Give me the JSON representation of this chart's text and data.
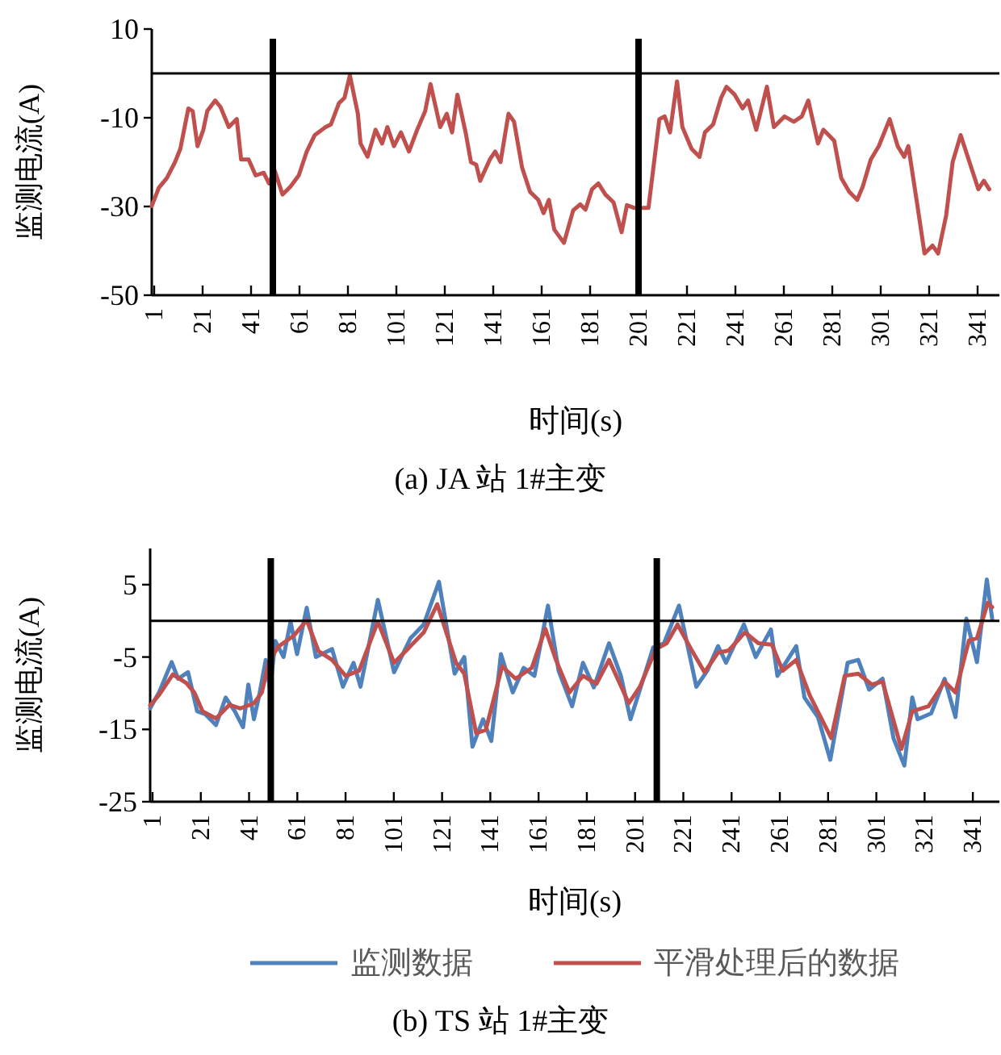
{
  "chart_data": [
    {
      "type": "line",
      "title": "(a) JA 站 1#主变",
      "xlabel": "时间(s)",
      "ylabel": "监测电流(A)",
      "xlim": [
        0,
        350
      ],
      "xticks": [
        1,
        21,
        41,
        61,
        81,
        101,
        121,
        141,
        161,
        181,
        201,
        221,
        241,
        261,
        281,
        301,
        321,
        341
      ],
      "ylim": [
        -50,
        10
      ],
      "yticks": [
        -50,
        -30,
        -10,
        10
      ],
      "ref_lines": [
        {
          "axis": "y",
          "value": 0
        },
        {
          "axis": "x",
          "value": 50
        },
        {
          "axis": "x",
          "value": 201
        }
      ],
      "series": [
        {
          "color": "#c0504d",
          "x": [
            0,
            2.9,
            6.2,
            9.6,
            11.8,
            15.1,
            16.9,
            18.9,
            21.3,
            22.9,
            26.2,
            28.4,
            31.8,
            35.1,
            36.9,
            40,
            42.9,
            46.2,
            48.4,
            50.7,
            54,
            57.3,
            60.7,
            64,
            67.3,
            71.8,
            74,
            77.3,
            79.6,
            81.8,
            85.1,
            86.2,
            89.1,
            92.4,
            95.1,
            97.3,
            100,
            102.9,
            106.2,
            109.6,
            112.9,
            115.1,
            119.1,
            121.8,
            124,
            126.2,
            129.6,
            131.8,
            134,
            135.6,
            139.6,
            141.8,
            144,
            147.3,
            149.6,
            152.9,
            156.2,
            159.6,
            161.8,
            164,
            166.2,
            170.2,
            174,
            176.9,
            179.1,
            181.8,
            184.4,
            187.3,
            190.7,
            194,
            196.2,
            199.1,
            205.1,
            209.6,
            211.8,
            214,
            216.9,
            219.1,
            222.9,
            226.2,
            228.4,
            231.8,
            235.1,
            237.3,
            240.7,
            244,
            246.2,
            249.6,
            254,
            256.9,
            261.3,
            265.1,
            268.4,
            271.1,
            275.1,
            277.3,
            281.8,
            284.7,
            288,
            291.3,
            293.6,
            296.9,
            300.2,
            304.7,
            308,
            310.7,
            312.4,
            315.8,
            319.1,
            322.4,
            324.7,
            328,
            330.7,
            334,
            337.3,
            341.3,
            343.6,
            345.8
          ],
          "values": [
            -29.9,
            -25.8,
            -23.6,
            -20,
            -17,
            -7.9,
            -8.5,
            -16.4,
            -12.7,
            -8.5,
            -6.1,
            -7.6,
            -12.1,
            -10.3,
            -19.4,
            -19.4,
            -23,
            -22.4,
            -24.8,
            -21.8,
            -27.3,
            -25.5,
            -23,
            -17.6,
            -13.9,
            -12.1,
            -11.5,
            -6.7,
            -5.5,
            -0.4,
            -9.1,
            -15.8,
            -18.8,
            -12.7,
            -15.8,
            -12.1,
            -16.4,
            -13.3,
            -17.6,
            -12.7,
            -8.5,
            -2.4,
            -12.1,
            -9.1,
            -13.3,
            -4.8,
            -13.3,
            -20,
            -20.6,
            -24.2,
            -19.4,
            -17.6,
            -20,
            -9.1,
            -10.9,
            -21.2,
            -26.7,
            -28.5,
            -31.5,
            -28.5,
            -35.2,
            -38.2,
            -30.9,
            -29.5,
            -30.7,
            -26.1,
            -24.8,
            -27.3,
            -29.1,
            -35.8,
            -29.7,
            -30.3,
            -30.3,
            -10.3,
            -9.7,
            -13.3,
            -1.8,
            -12.1,
            -17,
            -18.8,
            -13.3,
            -11.5,
            -5.5,
            -3,
            -4.8,
            -7.9,
            -6.1,
            -12.7,
            -3,
            -12.1,
            -9.7,
            -10.9,
            -9.7,
            -6.1,
            -15.8,
            -12.7,
            -15.2,
            -23.6,
            -26.7,
            -28.5,
            -25.5,
            -19.4,
            -16.4,
            -10.3,
            -16.4,
            -18.8,
            -16.4,
            -28.5,
            -40.6,
            -38.8,
            -40.6,
            -32.1,
            -20,
            -13.9,
            -19.4,
            -26.1,
            -24.2,
            -26.1
          ]
        }
      ]
    },
    {
      "type": "line",
      "title": "(b) TS 站 1#主变",
      "xlabel": "时间(s)",
      "ylabel": "监测电流(A)",
      "xlim": [
        0,
        352
      ],
      "xticks": [
        1,
        21,
        41,
        61,
        81,
        101,
        121,
        141,
        161,
        181,
        201,
        221,
        241,
        261,
        281,
        301,
        321,
        341
      ],
      "ylim": [
        -25,
        10
      ],
      "yticks": [
        -25,
        -15,
        -5,
        5
      ],
      "legend": "bottom",
      "ref_lines": [
        {
          "axis": "y",
          "value": 0
        },
        {
          "axis": "x",
          "value": 50
        },
        {
          "axis": "x",
          "value": 210
        }
      ],
      "series": [
        {
          "name": "监测数据",
          "color": "#4f81bd",
          "x": [
            0,
            3.8,
            8.9,
            11.6,
            15.7,
            19.5,
            22.8,
            27.3,
            31.3,
            35.1,
            38.5,
            40.7,
            43,
            45.2,
            47.9,
            49.7,
            51.9,
            55.3,
            58.2,
            60.9,
            64.9,
            68.7,
            75.4,
            79.9,
            84.3,
            87.2,
            94.4,
            101.1,
            107.9,
            113.4,
            119.7,
            126.2,
            130.2,
            133.6,
            138,
            141.4,
            145.4,
            150.3,
            154.8,
            159.3,
            164.9,
            169.3,
            174.9,
            179.4,
            183.9,
            190.2,
            195.1,
            199.1,
            205.1,
            208.5,
            213,
            219.2,
            226.4,
            230.9,
            235.4,
            238.7,
            246.1,
            251,
            257.3,
            260,
            267.8,
            271.2,
            276.8,
            281.9,
            289.1,
            293.5,
            298,
            303.6,
            308.1,
            312.6,
            315.9,
            318.1,
            323.7,
            329.3,
            333.8,
            338.3,
            342.7,
            346.8,
            349
          ],
          "values": [
            -12.1,
            -9.8,
            -5.7,
            -8,
            -7.1,
            -12.5,
            -12.9,
            -14.4,
            -10.6,
            -12.5,
            -14.7,
            -8.8,
            -13.6,
            -10.3,
            -5.4,
            -9.5,
            -2.8,
            -5,
            -0.1,
            -4.6,
            1.8,
            -5,
            -3.9,
            -9.1,
            -5.8,
            -9.1,
            2.9,
            -7.1,
            -2.4,
            -0.5,
            5.4,
            -7.3,
            -5,
            -17.4,
            -13.6,
            -16.6,
            -4.6,
            -9.9,
            -6.5,
            -7.6,
            2.1,
            -6.9,
            -11.8,
            -5.8,
            -9.2,
            -3.1,
            -7.6,
            -13.6,
            -7.3,
            -3.7,
            -3.1,
            2.1,
            -9.1,
            -6.9,
            -3.5,
            -5.8,
            -0.5,
            -5,
            -1.2,
            -7.6,
            -3.5,
            -10.6,
            -13.3,
            -19.2,
            -5.8,
            -5.4,
            -9.5,
            -8,
            -16.2,
            -20,
            -10.6,
            -13.6,
            -12.8,
            -8,
            -13.3,
            0.3,
            -5.7,
            5.7,
            0.3
          ]
        },
        {
          "name": "平滑处理后的数据",
          "color": "#c0504d",
          "x": [
            0,
            3.8,
            9.4,
            15,
            18.3,
            21.7,
            27.3,
            32.9,
            37.4,
            43,
            46.3,
            49.2,
            53,
            59.7,
            64.9,
            69.8,
            75.4,
            81,
            86.6,
            94.4,
            101.1,
            107.9,
            113.4,
            119,
            126.8,
            130.2,
            135.1,
            139.1,
            145.9,
            151.5,
            158.2,
            163.8,
            168.2,
            173.8,
            179.4,
            185,
            190.2,
            198.4,
            203,
            209.6,
            214.1,
            218.6,
            224.2,
            229.8,
            235.4,
            239.8,
            246.5,
            252.1,
            257.7,
            262.2,
            267.8,
            273.4,
            282.3,
            287.9,
            293.5,
            299.1,
            303.6,
            311.4,
            315.9,
            322.6,
            329.3,
            333.8,
            339.4,
            342.7,
            347.2,
            349
          ],
          "values": [
            -11.7,
            -10.2,
            -7.4,
            -8.6,
            -9.9,
            -12.5,
            -13.5,
            -11.6,
            -12.1,
            -11.4,
            -9.9,
            -5.7,
            -3.6,
            -2,
            0.1,
            -4.2,
            -5.4,
            -7.6,
            -6.9,
            -0.1,
            -5.8,
            -3.5,
            -1.6,
            2.3,
            -5.8,
            -7.3,
            -15.5,
            -15.1,
            -6.3,
            -8,
            -6.5,
            -1.1,
            -5.4,
            -9.9,
            -7.6,
            -8.7,
            -5.4,
            -11.4,
            -9.1,
            -3.9,
            -3.1,
            -0.5,
            -3.9,
            -7.1,
            -4.4,
            -4.1,
            -1.6,
            -3.1,
            -3.3,
            -6.9,
            -5.4,
            -10.3,
            -16.2,
            -7.6,
            -7.3,
            -8.8,
            -8.4,
            -17.7,
            -12.5,
            -11.8,
            -8.4,
            -9.9,
            -2.7,
            -2.4,
            2.5,
            1.9
          ]
        }
      ]
    }
  ]
}
